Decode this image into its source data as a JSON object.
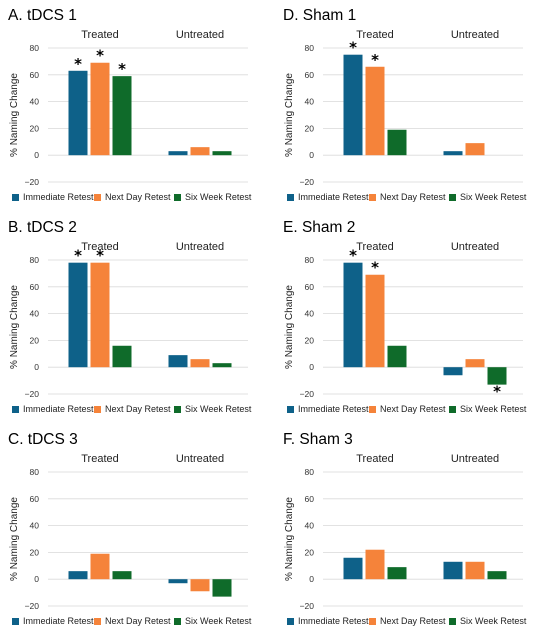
{
  "colors": {
    "immediate": "#0e6189",
    "next_day": "#f5833a",
    "six_week": "#0f6b2a"
  },
  "chart_data": [
    {
      "type": "bar",
      "title": "A. tDCS 1",
      "categories": [
        "Treated",
        "Untreated"
      ],
      "ylabel": "% Naming Change",
      "ylim": [
        -20,
        80
      ],
      "yticks": [
        80,
        60,
        40,
        20,
        0,
        -20
      ],
      "grid": true,
      "legend": "bottom",
      "series": [
        {
          "name": "Immediate Retest",
          "values": [
            63,
            3
          ],
          "significant": [
            true,
            false
          ]
        },
        {
          "name": "Next Day Retest",
          "values": [
            69,
            6
          ],
          "significant": [
            true,
            false
          ]
        },
        {
          "name": "Six Week Retest",
          "values": [
            59,
            3
          ],
          "significant": [
            true,
            false
          ]
        }
      ]
    },
    {
      "type": "bar",
      "title": "D. Sham 1",
      "categories": [
        "Treated",
        "Untreated"
      ],
      "ylabel": "% Naming Change",
      "ylim": [
        -20,
        80
      ],
      "yticks": [
        80,
        60,
        40,
        20,
        0,
        -20
      ],
      "grid": true,
      "legend": "bottom",
      "series": [
        {
          "name": "Immediate Retest",
          "values": [
            75,
            3
          ],
          "significant": [
            true,
            false
          ]
        },
        {
          "name": "Next Day Retest",
          "values": [
            66,
            9
          ],
          "significant": [
            true,
            false
          ]
        },
        {
          "name": "Six Week Retest",
          "values": [
            19,
            0
          ],
          "significant": [
            false,
            false
          ]
        }
      ]
    },
    {
      "type": "bar",
      "title": "B. tDCS 2",
      "categories": [
        "Treated",
        "Untreated"
      ],
      "ylabel": "% Naming Change",
      "ylim": [
        -20,
        80
      ],
      "yticks": [
        80,
        60,
        40,
        20,
        0,
        -20
      ],
      "grid": true,
      "legend": "bottom",
      "series": [
        {
          "name": "Immediate Retest",
          "values": [
            78,
            9
          ],
          "significant": [
            true,
            false
          ]
        },
        {
          "name": "Next Day Retest",
          "values": [
            78,
            6
          ],
          "significant": [
            true,
            false
          ]
        },
        {
          "name": "Six Week Retest",
          "values": [
            16,
            3
          ],
          "significant": [
            false,
            false
          ]
        }
      ]
    },
    {
      "type": "bar",
      "title": "E. Sham 2",
      "categories": [
        "Treated",
        "Untreated"
      ],
      "ylabel": "% Naming Change",
      "ylim": [
        -20,
        80
      ],
      "yticks": [
        80,
        60,
        40,
        20,
        0,
        -20
      ],
      "grid": true,
      "legend": "bottom",
      "series": [
        {
          "name": "Immediate Retest",
          "values": [
            78,
            -6
          ],
          "significant": [
            true,
            false
          ]
        },
        {
          "name": "Next Day Retest",
          "values": [
            69,
            6
          ],
          "significant": [
            true,
            false
          ]
        },
        {
          "name": "Six Week Retest",
          "values": [
            16,
            -13
          ],
          "significant": [
            false,
            true
          ]
        }
      ]
    },
    {
      "type": "bar",
      "title": "C. tDCS 3",
      "categories": [
        "Treated",
        "Untreated"
      ],
      "ylabel": "% Naming Change",
      "ylim": [
        -20,
        80
      ],
      "yticks": [
        80,
        60,
        40,
        20,
        0,
        -20
      ],
      "grid": true,
      "legend": "bottom",
      "series": [
        {
          "name": "Immediate Retest",
          "values": [
            6,
            -3
          ],
          "significant": [
            false,
            false
          ]
        },
        {
          "name": "Next Day Retest",
          "values": [
            19,
            -9
          ],
          "significant": [
            false,
            false
          ]
        },
        {
          "name": "Six Week Retest",
          "values": [
            6,
            -13
          ],
          "significant": [
            false,
            false
          ]
        }
      ]
    },
    {
      "type": "bar",
      "title": "F. Sham 3",
      "categories": [
        "Treated",
        "Untreated"
      ],
      "ylabel": "% Naming Change",
      "ylim": [
        -20,
        80
      ],
      "yticks": [
        80,
        60,
        40,
        20,
        0,
        -20
      ],
      "grid": true,
      "legend": "bottom",
      "series": [
        {
          "name": "Immediate Retest",
          "values": [
            16,
            13
          ],
          "significant": [
            false,
            false
          ]
        },
        {
          "name": "Next Day Retest",
          "values": [
            22,
            13
          ],
          "significant": [
            false,
            false
          ]
        },
        {
          "name": "Six Week Retest",
          "values": [
            9,
            6
          ],
          "significant": [
            false,
            false
          ]
        }
      ]
    }
  ]
}
